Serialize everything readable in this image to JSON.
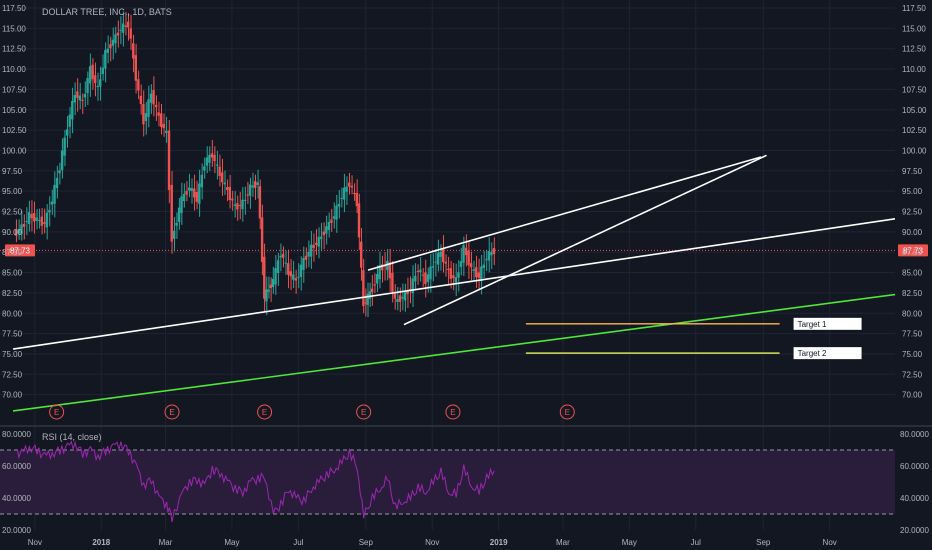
{
  "header": {
    "title": "DOLLAR TREE, INC., 1D, BATS"
  },
  "colors": {
    "background": "#131722",
    "grid": "#1f2433",
    "axis_text": "#b2b5be",
    "candle_up": "#26a69a",
    "candle_down": "#ef5350",
    "trendline": "#ffffff",
    "support_line": "#4ee63a",
    "target1_line": "#ffb74d",
    "target2_line": "#d4e157",
    "price_line": "#ef5350",
    "rsi_line": "#9c27b0",
    "rsi_band": "#2a1d3c",
    "earnings_marker": "#ef5350"
  },
  "price_badge": "87.73",
  "chart_data": [
    {
      "type": "candlestick",
      "title": "DOLLAR TREE, INC., 1D, BATS",
      "ylim": [
        67.5,
        117.5
      ],
      "y_ticks": [
        "117.50",
        "115.00",
        "112.50",
        "110.00",
        "107.50",
        "105.00",
        "102.50",
        "100.00",
        "97.50",
        "95.00",
        "92.50",
        "90.00",
        "87.50",
        "85.00",
        "82.50",
        "80.00",
        "77.50",
        "75.00",
        "72.50",
        "70.00"
      ],
      "x_ticks": [
        "Nov",
        "2018",
        "Mar",
        "May",
        "Jul",
        "Sep",
        "Nov",
        "2019",
        "Mar",
        "May",
        "Jul",
        "Sep",
        "Nov"
      ],
      "last_price": 87.73,
      "closes": [
        {
          "date": "2017-10-20",
          "close": 90.5
        },
        {
          "date": "2017-10-27",
          "close": 92.0
        },
        {
          "date": "2017-11-03",
          "close": 91.5
        },
        {
          "date": "2017-11-10",
          "close": 91.0
        },
        {
          "date": "2017-11-17",
          "close": 94.0
        },
        {
          "date": "2017-11-24",
          "close": 98.0
        },
        {
          "date": "2017-12-01",
          "close": 103.0
        },
        {
          "date": "2017-12-08",
          "close": 107.0
        },
        {
          "date": "2017-12-15",
          "close": 106.0
        },
        {
          "date": "2017-12-22",
          "close": 110.0
        },
        {
          "date": "2017-12-29",
          "close": 107.5
        },
        {
          "date": "2018-01-05",
          "close": 112.0
        },
        {
          "date": "2018-01-12",
          "close": 113.5
        },
        {
          "date": "2018-01-19",
          "close": 115.0
        },
        {
          "date": "2018-01-26",
          "close": 115.5
        },
        {
          "date": "2018-02-02",
          "close": 109.0
        },
        {
          "date": "2018-02-09",
          "close": 103.5
        },
        {
          "date": "2018-02-16",
          "close": 107.0
        },
        {
          "date": "2018-02-23",
          "close": 104.0
        },
        {
          "date": "2018-03-02",
          "close": 102.0
        },
        {
          "date": "2018-03-07",
          "close": 89.0
        },
        {
          "date": "2018-03-16",
          "close": 94.0
        },
        {
          "date": "2018-03-23",
          "close": 95.5
        },
        {
          "date": "2018-03-30",
          "close": 94.0
        },
        {
          "date": "2018-04-06",
          "close": 98.5
        },
        {
          "date": "2018-04-13",
          "close": 99.5
        },
        {
          "date": "2018-04-20",
          "close": 97.0
        },
        {
          "date": "2018-04-27",
          "close": 95.0
        },
        {
          "date": "2018-05-04",
          "close": 93.0
        },
        {
          "date": "2018-05-11",
          "close": 93.5
        },
        {
          "date": "2018-05-18",
          "close": 95.5
        },
        {
          "date": "2018-05-25",
          "close": 96.0
        },
        {
          "date": "2018-05-31",
          "close": 82.0
        },
        {
          "date": "2018-06-08",
          "close": 84.0
        },
        {
          "date": "2018-06-15",
          "close": 87.5
        },
        {
          "date": "2018-06-22",
          "close": 85.0
        },
        {
          "date": "2018-06-29",
          "close": 84.0
        },
        {
          "date": "2018-07-06",
          "close": 86.5
        },
        {
          "date": "2018-07-13",
          "close": 88.0
        },
        {
          "date": "2018-07-20",
          "close": 89.0
        },
        {
          "date": "2018-07-27",
          "close": 90.5
        },
        {
          "date": "2018-08-03",
          "close": 92.0
        },
        {
          "date": "2018-08-10",
          "close": 94.5
        },
        {
          "date": "2018-08-17",
          "close": 96.0
        },
        {
          "date": "2018-08-24",
          "close": 93.5
        },
        {
          "date": "2018-08-30",
          "close": 81.0
        },
        {
          "date": "2018-09-07",
          "close": 83.0
        },
        {
          "date": "2018-09-14",
          "close": 85.5
        },
        {
          "date": "2018-09-21",
          "close": 86.0
        },
        {
          "date": "2018-09-28",
          "close": 81.5
        },
        {
          "date": "2018-10-05",
          "close": 82.0
        },
        {
          "date": "2018-10-12",
          "close": 83.0
        },
        {
          "date": "2018-10-19",
          "close": 85.5
        },
        {
          "date": "2018-10-26",
          "close": 84.0
        },
        {
          "date": "2018-11-02",
          "close": 86.0
        },
        {
          "date": "2018-11-09",
          "close": 87.5
        },
        {
          "date": "2018-11-16",
          "close": 85.0
        },
        {
          "date": "2018-11-23",
          "close": 84.0
        },
        {
          "date": "2018-11-30",
          "close": 88.0
        },
        {
          "date": "2018-12-07",
          "close": 85.5
        },
        {
          "date": "2018-12-14",
          "close": 84.5
        },
        {
          "date": "2018-12-21",
          "close": 87.0
        },
        {
          "date": "2018-12-28",
          "close": 87.7
        }
      ],
      "earnings_dates": [
        "2017-11-21",
        "2018-03-07",
        "2018-05-31",
        "2018-08-30",
        "2018-11-20",
        "2019-03-05"
      ],
      "drawings": [
        {
          "kind": "trendline",
          "from": {
            "date": "2017-10-12",
            "price": 75.6
          },
          "to": {
            "date": "2019-12-31",
            "price": 91.6
          }
        },
        {
          "kind": "trendline",
          "from": {
            "date": "2017-10-12",
            "price": 68.0
          },
          "to": {
            "date": "2019-12-31",
            "price": 82.3
          }
        },
        {
          "kind": "trendline",
          "from": {
            "date": "2018-09-03",
            "price": 85.3
          },
          "to": {
            "date": "2019-08-30",
            "price": 99.2
          }
        },
        {
          "kind": "trendline",
          "from": {
            "date": "2018-10-06",
            "price": 78.6
          },
          "to": {
            "date": "2019-09-04",
            "price": 99.4
          }
        },
        {
          "kind": "horizontal",
          "label": "Target 1",
          "price": 78.7,
          "from": "2019-01-26",
          "to": "2019-09-16"
        },
        {
          "kind": "horizontal",
          "label": "Target 2",
          "price": 75.1,
          "from": "2019-01-26",
          "to": "2019-09-16"
        }
      ]
    },
    {
      "type": "line",
      "title": "RSI (14, close)",
      "ylim": [
        20,
        80
      ],
      "y_ticks": [
        "80.0000",
        "60.0000",
        "40.0000",
        "20.0000"
      ],
      "band": [
        30,
        70
      ],
      "values": [
        68,
        72,
        70,
        66,
        68,
        70,
        72,
        74,
        68,
        70,
        66,
        70,
        72,
        74,
        70,
        60,
        48,
        52,
        40,
        36,
        28,
        42,
        50,
        52,
        48,
        58,
        56,
        50,
        46,
        44,
        50,
        52,
        54,
        30,
        36,
        46,
        40,
        38,
        46,
        50,
        54,
        58,
        62,
        68,
        60,
        28,
        40,
        46,
        52,
        34,
        38,
        40,
        46,
        44,
        50,
        56,
        44,
        42,
        58,
        48,
        44,
        52,
        58
      ]
    }
  ]
}
